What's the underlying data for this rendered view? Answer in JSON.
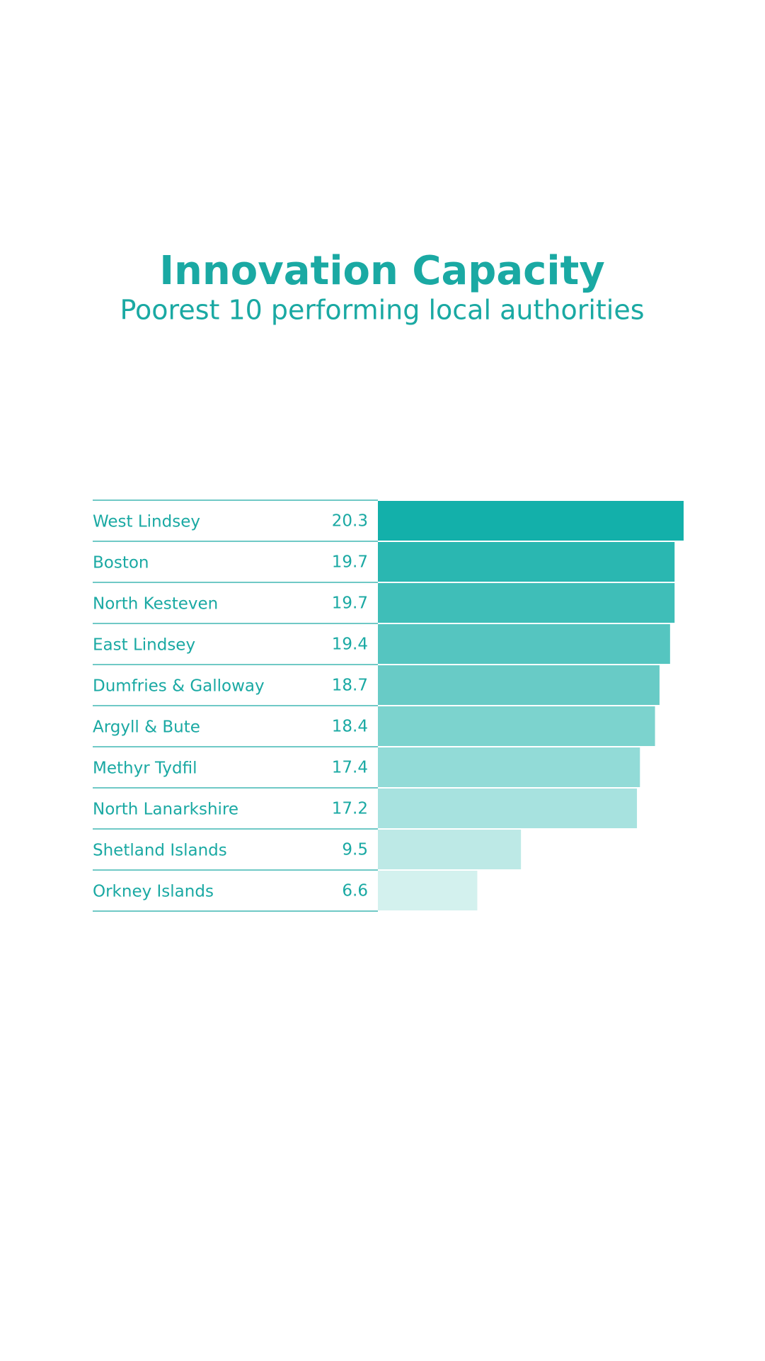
{
  "chart_data": {
    "type": "bar",
    "orientation": "horizontal",
    "title": "Innovation Capacity",
    "subtitle": "Poorest 10 performing local authorities",
    "categories": [
      "West Lindsey",
      "Boston",
      "North Kesteven",
      "East Lindsey",
      "Dumfries & Galloway",
      "Argyll & Bute",
      "Methyr Tydfil",
      "North Lanarkshire",
      "Shetland Islands",
      "Orkney Islands"
    ],
    "values": [
      20.3,
      19.7,
      19.7,
      19.4,
      18.7,
      18.4,
      17.4,
      17.2,
      9.5,
      6.6
    ],
    "colors": [
      "#13b0aa",
      "#2ab7b1",
      "#3fbeb8",
      "#55c5c0",
      "#68cbc6",
      "#7cd3ce",
      "#92dbd7",
      "#a7e2df",
      "#bde9e6",
      "#d3f1ee"
    ]
  }
}
